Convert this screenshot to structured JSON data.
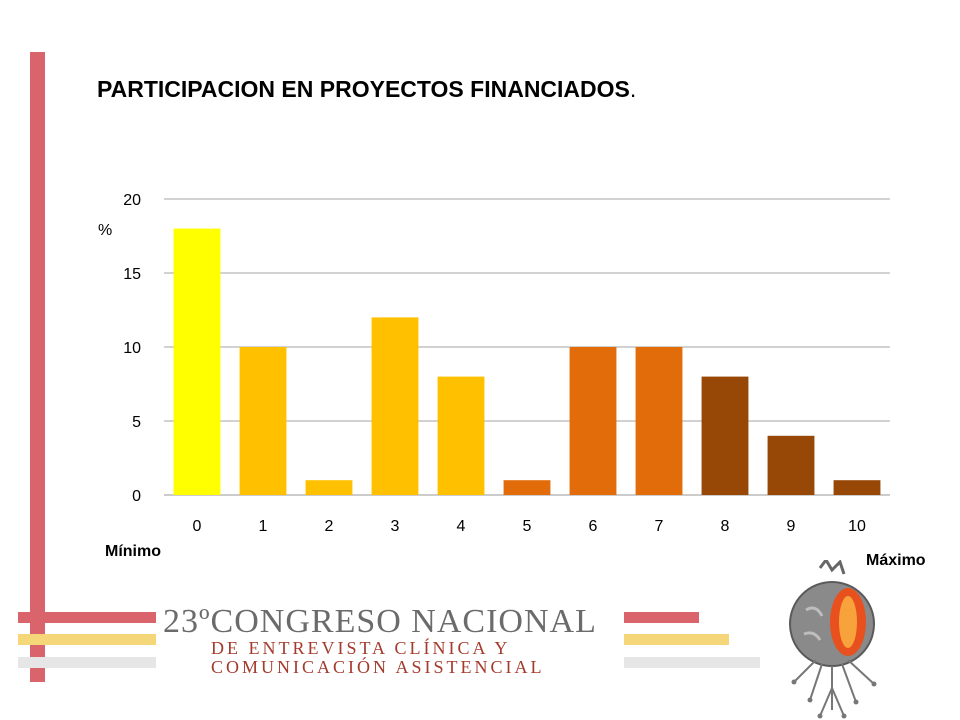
{
  "slide": {
    "title": "PARTICIPACION EN PROYECTOS FINANCIADOS",
    "title_period": ".",
    "min_label": "Mínimo",
    "max_label": "Máximo",
    "colors": {
      "accent_red": "#d9646b",
      "accent_yellow": "#f5d77a",
      "accent_gray": "#e6e6e6"
    }
  },
  "logo": {
    "line1_number": "23º",
    "line1_text": "CONGRESO NACIONAL",
    "line2": "DE ENTREVISTA CLÍNICA Y",
    "line3": "COMUNICACIÓN ASISTENCIAL",
    "emblem_icon": "heart-roots-emblem-icon"
  },
  "chart_data": {
    "type": "bar",
    "categories": [
      "0",
      "1",
      "2",
      "3",
      "4",
      "5",
      "6",
      "7",
      "8",
      "9",
      "10"
    ],
    "values": [
      18,
      10,
      1,
      12,
      8,
      1,
      10,
      10,
      8,
      4,
      1
    ],
    "bar_colors": [
      "#ffff00",
      "#ffc000",
      "#ffc000",
      "#ffc000",
      "#ffc000",
      "#e36c0a",
      "#e36c0a",
      "#e36c0a",
      "#974806",
      "#974806",
      "#974806"
    ],
    "ylabel": "%",
    "ylim": [
      0,
      20
    ],
    "yticks": [
      0,
      5,
      10,
      15,
      20
    ],
    "grid": true,
    "legend": "none"
  }
}
